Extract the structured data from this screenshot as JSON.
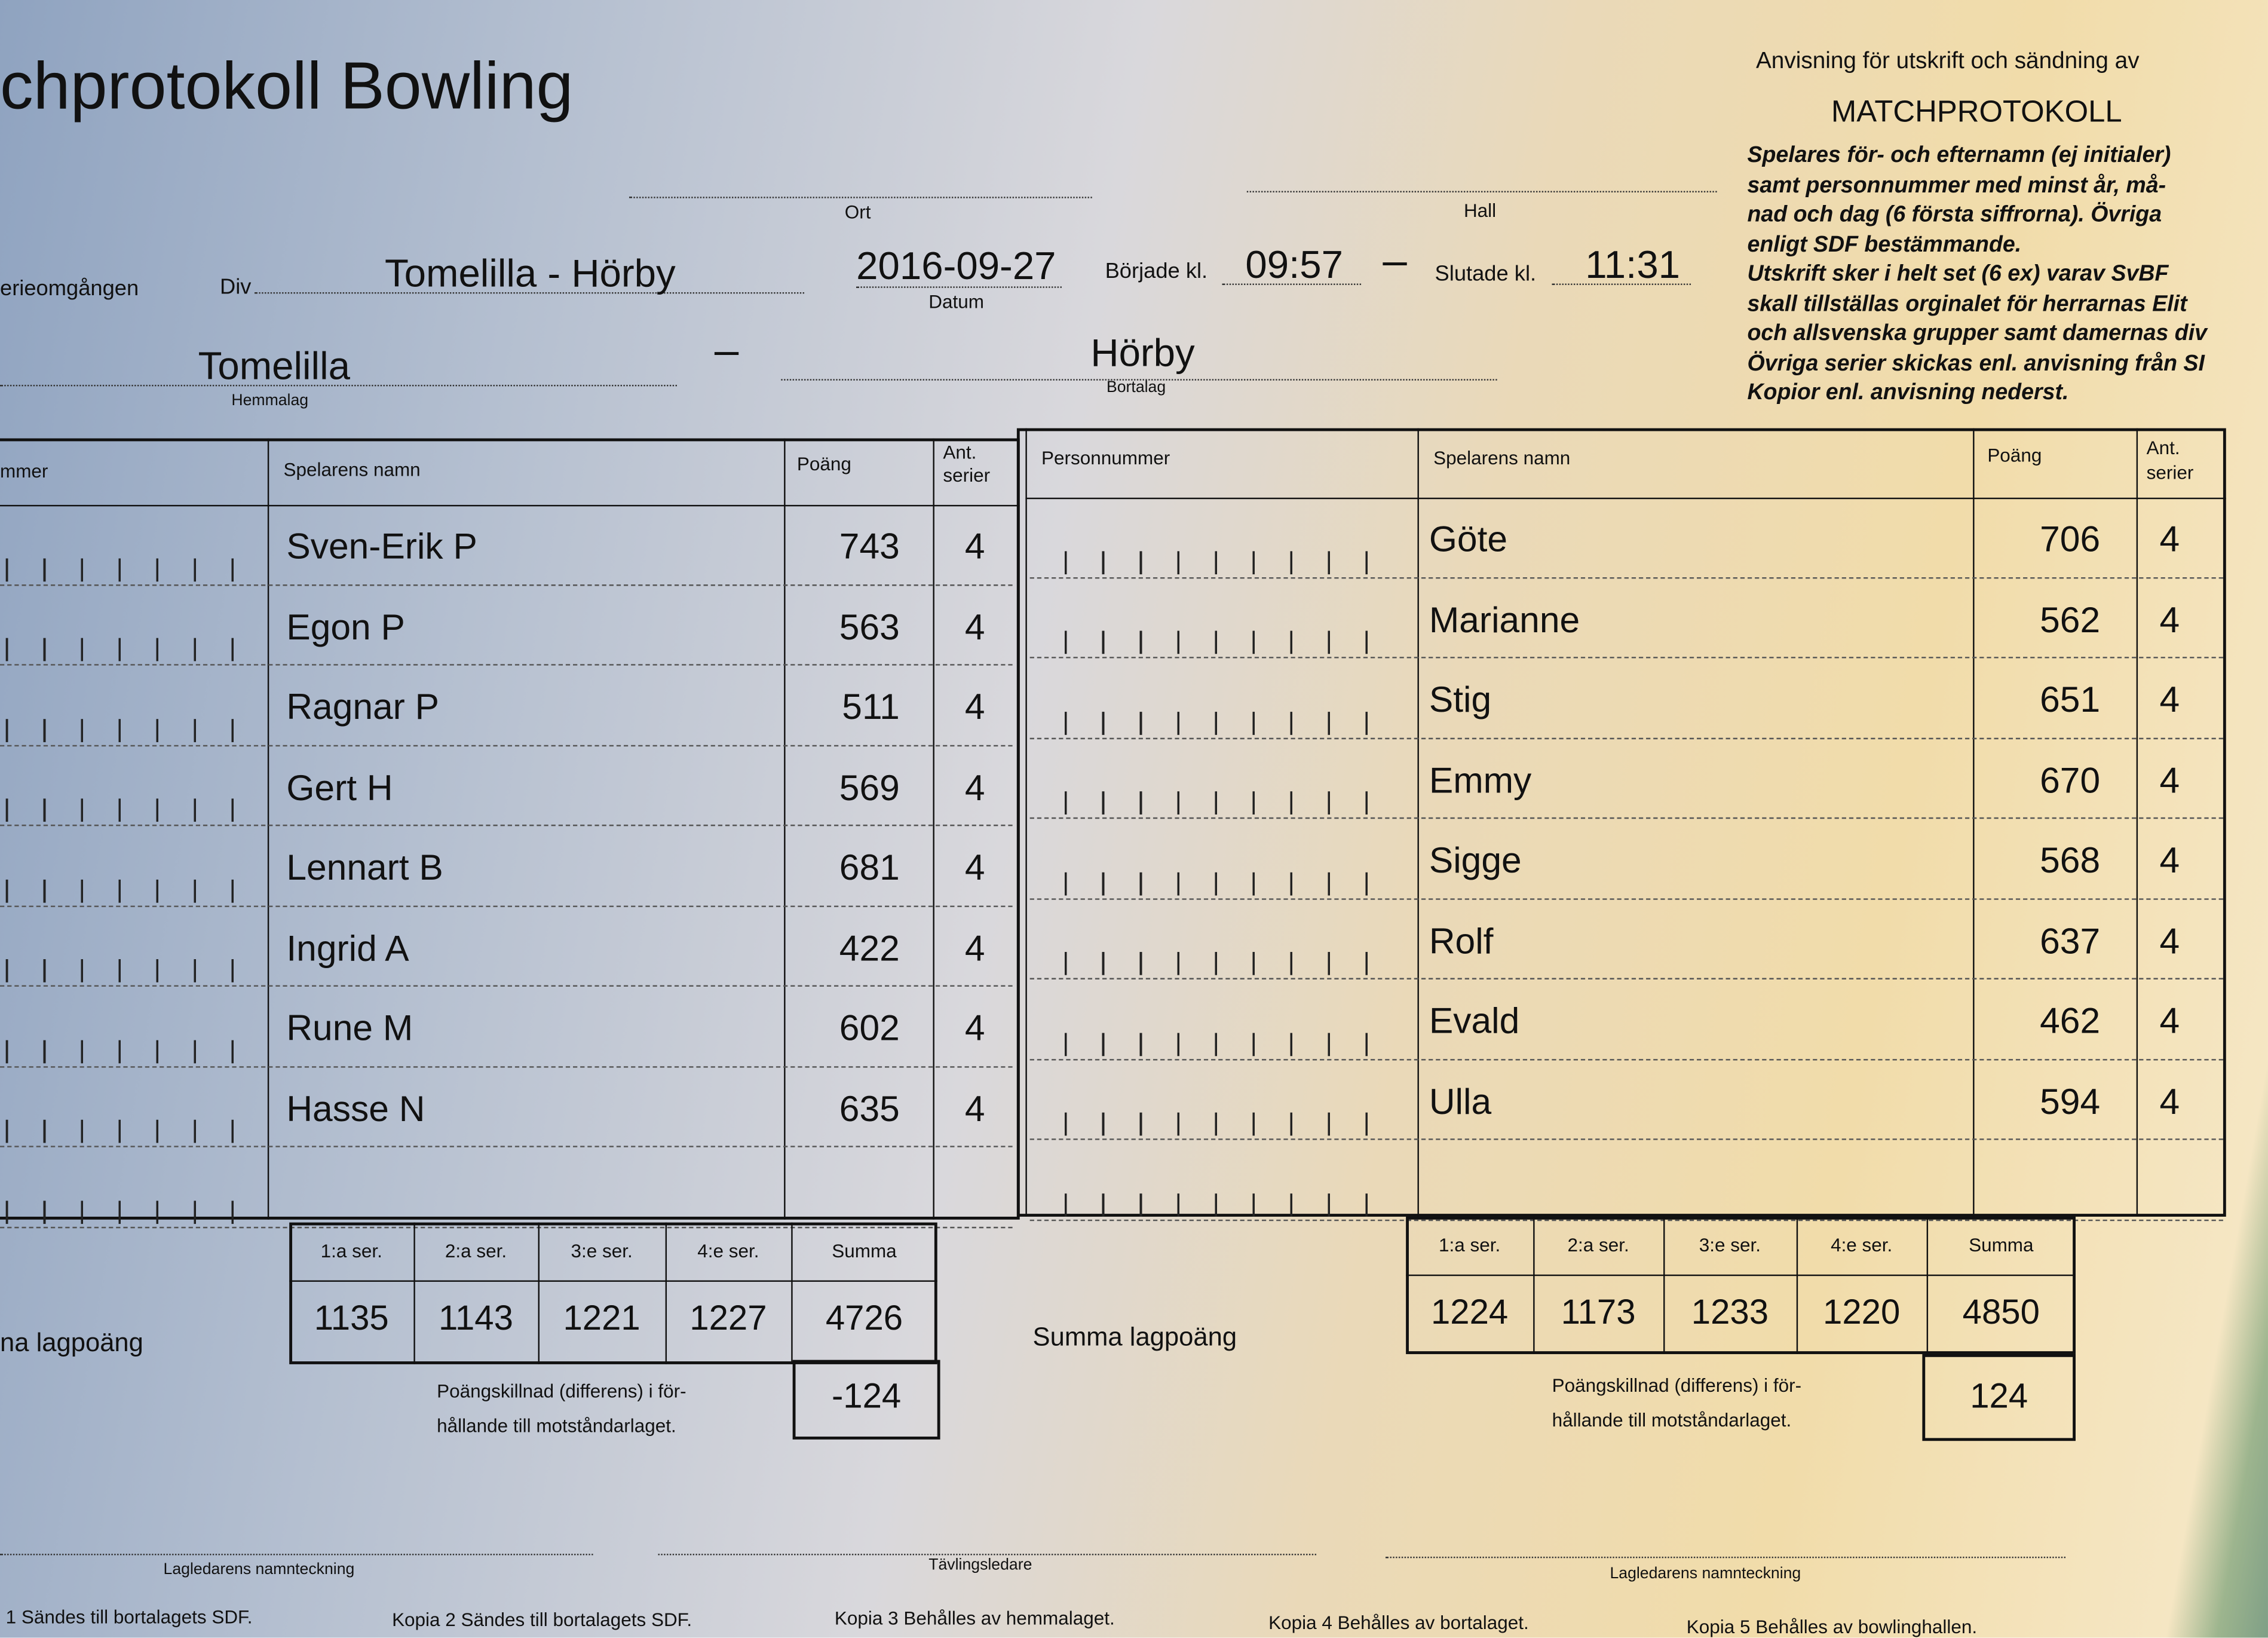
{
  "header": {
    "title": "chprotokoll Bowling",
    "serieomgangen_label": "erieomgången",
    "div_label": "Div",
    "match": "Tomelilla - Hörby",
    "ort_label": "Ort",
    "hall_label": "Hall",
    "date": "2016-09-27",
    "date_label": "Datum",
    "started_label": "Började kl.",
    "started": "09:57",
    "dash": "–",
    "ended_label": "Slutade kl.",
    "ended": "11:31",
    "home_team": "Tomelilla",
    "home_label": "Hemmalag",
    "away_team": "Hörby",
    "away_label": "Bortalag"
  },
  "instructions": {
    "line1": "Anvisning för utskrift och sändning av",
    "heading": "MATCHPROTOKOLL",
    "lines": [
      "Spelares för- och efternamn (ej initialer)",
      "samt personnummer med minst år, må-",
      "nad och dag (6 första siffrorna). Övriga",
      "enligt SDF bestämmande.",
      "Utskrift sker i helt set (6 ex) varav SvBF",
      "skall tillställas orginalet för herrarnas Elit",
      "och allsvenska grupper samt damernas div",
      "Övriga serier skickas enl. anvisning från SI",
      "Kopior enl. anvisning nederst."
    ]
  },
  "home": {
    "columns": {
      "personnummer": "mmer",
      "name": "Spelarens namn",
      "points": "Poäng",
      "series": "Ant. serier"
    },
    "players": [
      {
        "name": "Sven-Erik P",
        "points": "743",
        "series": "4"
      },
      {
        "name": "Egon P",
        "points": "563",
        "series": "4"
      },
      {
        "name": "Ragnar P",
        "points": "511",
        "series": "4"
      },
      {
        "name": "Gert H",
        "points": "569",
        "series": "4"
      },
      {
        "name": "Lennart B",
        "points": "681",
        "series": "4"
      },
      {
        "name": "Ingrid A",
        "points": "422",
        "series": "4"
      },
      {
        "name": "Rune M",
        "points": "602",
        "series": "4"
      },
      {
        "name": "Hasse N",
        "points": "635",
        "series": "4"
      }
    ],
    "series_headers": [
      "1:a ser.",
      "2:a ser.",
      "3:e ser.",
      "4:e ser.",
      "Summa"
    ],
    "series_values": [
      "1135",
      "1143",
      "1221",
      "1227",
      "4726"
    ],
    "team_points_label": "na lagpoäng",
    "diff_label_1": "Poängskillnad (differens) i för-",
    "diff_label_2": "hållande till motståndarlaget.",
    "diff": "-124"
  },
  "away": {
    "columns": {
      "personnummer": "Personnummer",
      "name": "Spelarens namn",
      "points": "Poäng",
      "series": "Ant. serier"
    },
    "players": [
      {
        "name": "Göte",
        "points": "706",
        "series": "4"
      },
      {
        "name": "Marianne",
        "points": "562",
        "series": "4"
      },
      {
        "name": "Stig",
        "points": "651",
        "series": "4"
      },
      {
        "name": "Emmy",
        "points": "670",
        "series": "4"
      },
      {
        "name": "Sigge",
        "points": "568",
        "series": "4"
      },
      {
        "name": "Rolf",
        "points": "637",
        "series": "4"
      },
      {
        "name": "Evald",
        "points": "462",
        "series": "4"
      },
      {
        "name": "Ulla",
        "points": "594",
        "series": "4"
      }
    ],
    "series_headers": [
      "1:a ser.",
      "2:a ser.",
      "3:e ser.",
      "4:e ser.",
      "Summa"
    ],
    "series_values": [
      "1224",
      "1173",
      "1233",
      "1220",
      "4850"
    ],
    "team_points_label": "Summa lagpoäng",
    "diff_label_1": "Poängskillnad (differens) i för-",
    "diff_label_2": "hållande till motståndarlaget.",
    "diff": "124"
  },
  "signatures": {
    "left": "Lagledarens namnteckning",
    "middle": "Tävlingsledare",
    "right": "Lagledarens namnteckning"
  },
  "copies": [
    "1 Sändes till bortalagets SDF.",
    "Kopia 2 Sändes till bortalagets SDF.",
    "Kopia 3 Behålles av hemmalaget.",
    "Kopia 4 Behålles av bortalaget.",
    "Kopia 5 Behålles av bowlinghallen."
  ]
}
